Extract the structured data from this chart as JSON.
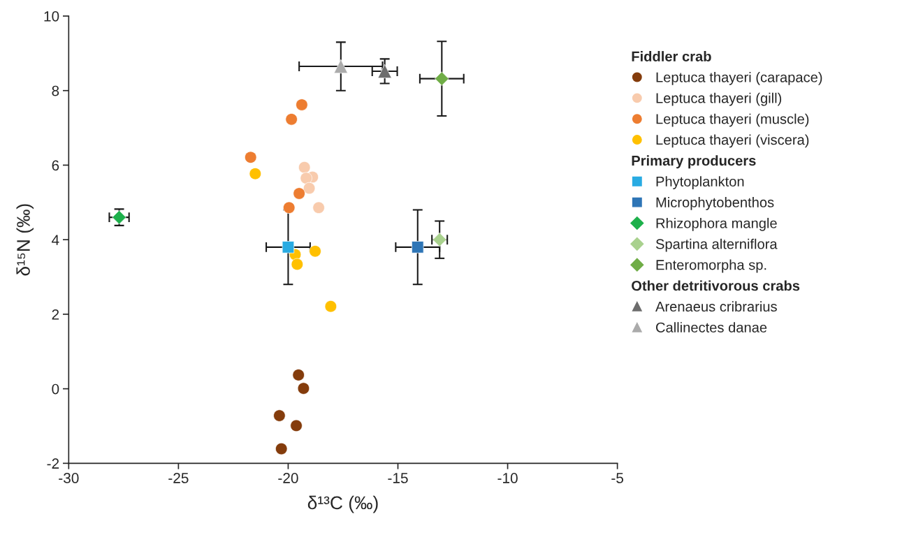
{
  "chart_data": {
    "type": "scatter",
    "xlabel": "δ¹³C (‰)",
    "ylabel": "δ¹⁵N (‰)",
    "xlim": [
      -30,
      -5
    ],
    "xticks": [
      -30,
      -25,
      -20,
      -15,
      -10,
      -5
    ],
    "ylim": [
      -2,
      10
    ],
    "yticks": [
      -2,
      0,
      2,
      4,
      6,
      8,
      10
    ],
    "grid": false,
    "legend": "right",
    "annotations": [
      "Fiddler crab",
      "Primary producers",
      "Other detritivorous crabs"
    ],
    "series": [
      {
        "name": "Leptuca thayeri (carapace)",
        "color": "#843c0c",
        "marker": "circle",
        "x": [
          -19.53,
          -19.3,
          -20.4,
          -19.63,
          -20.31
        ],
        "values": [
          0.37,
          0.01,
          -0.72,
          -0.99,
          -1.61
        ]
      },
      {
        "name": "Leptuca thayeri (gill)",
        "color": "#f8cbad",
        "marker": "circle",
        "x": [
          -19.26,
          -18.89,
          -19.18,
          -19.04,
          -18.61
        ],
        "values": [
          5.94,
          5.68,
          5.65,
          5.38,
          4.86
        ]
      },
      {
        "name": "Leptuca thayeri (muscle)",
        "color": "#ed7d31",
        "marker": "circle",
        "x": [
          -19.38,
          -19.85,
          -21.71,
          -19.5,
          -19.96
        ],
        "values": [
          7.62,
          7.23,
          6.21,
          5.24,
          4.86
        ]
      },
      {
        "name": "Leptuca thayeri (viscera)",
        "color": "#ffc000",
        "marker": "circle",
        "x": [
          -21.5,
          -18.77,
          -19.68,
          -19.59,
          -18.06
        ],
        "values": [
          5.77,
          3.69,
          3.6,
          3.34,
          2.21
        ]
      },
      {
        "name": "Phytoplankton",
        "color": "#29abe2",
        "marker": "square",
        "x": [
          -20.0
        ],
        "values": [
          3.8
        ],
        "errors": [
          1.0
        ],
        "xerrors": [
          1.0
        ]
      },
      {
        "name": "Microphytobenthos",
        "color": "#2e75b6",
        "marker": "square",
        "x": [
          -14.1
        ],
        "values": [
          3.8
        ],
        "errors": [
          1.0
        ],
        "xerrors": [
          1.0
        ]
      },
      {
        "name": "Rhizophora mangle",
        "color": "#1db04b",
        "marker": "diamond",
        "x": [
          -27.7
        ],
        "values": [
          4.6
        ],
        "errors": [
          0.22
        ],
        "xerrors": [
          0.45
        ]
      },
      {
        "name": "Spartina alterniflora",
        "color": "#a9d18e",
        "marker": "diamond",
        "x": [
          -13.1
        ],
        "values": [
          4.0
        ],
        "errors": [
          0.5
        ],
        "xerrors": [
          0.35
        ]
      },
      {
        "name": "Enteromorpha sp.",
        "color": "#70ad47",
        "marker": "diamond",
        "x": [
          -13.0
        ],
        "values": [
          8.32
        ],
        "errors": [
          1.0
        ],
        "xerrors": [
          1.0
        ]
      },
      {
        "name": "Arenaeus cribrarius",
        "color": "#6d6d6d",
        "marker": "triangle",
        "x": [
          -15.6
        ],
        "values": [
          8.52
        ],
        "errors": [
          0.33
        ],
        "xerrors": [
          0.57
        ]
      },
      {
        "name": "Callinectes danae",
        "color": "#ababab",
        "marker": "triangle",
        "x": [
          -17.6
        ],
        "values": [
          8.65
        ],
        "errors": [
          0.65
        ],
        "xerrors": [
          1.9
        ]
      }
    ]
  }
}
